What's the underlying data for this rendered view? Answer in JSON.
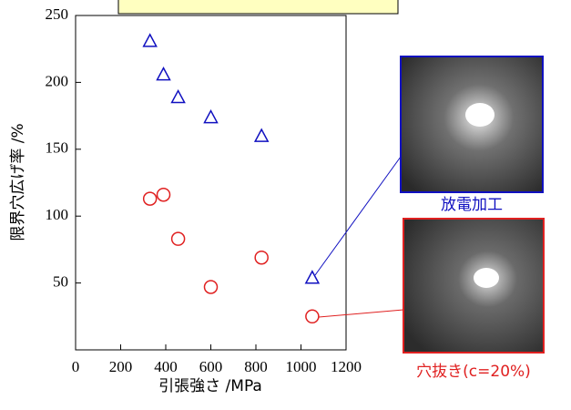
{
  "chart_data": {
    "type": "scatter",
    "x_label": "引張強さ /MPa",
    "y_label": "限界穴広げ率 /%",
    "xlim": [
      0,
      1200
    ],
    "xticks": [
      0,
      200,
      400,
      600,
      800,
      1000,
      1200
    ],
    "ylim": [
      0,
      250
    ],
    "yticks": [
      50,
      100,
      150,
      200,
      250
    ],
    "series": [
      {
        "color": "#1010c0",
        "marker": "triangle",
        "x": [
          330,
          390,
          455,
          600,
          825,
          1050
        ],
        "values": [
          231,
          206,
          189,
          174,
          160,
          54
        ]
      },
      {
        "color": "#e02020",
        "marker": "circle",
        "x": [
          330,
          390,
          455,
          600,
          825,
          1050
        ],
        "values": [
          113,
          116,
          83,
          47,
          69,
          25
        ]
      }
    ],
    "annotations": [
      {
        "text": "放電加工",
        "color": "#1010c0"
      },
      {
        "text": "穴抜き(c=20%)",
        "color": "#e02020"
      }
    ]
  }
}
